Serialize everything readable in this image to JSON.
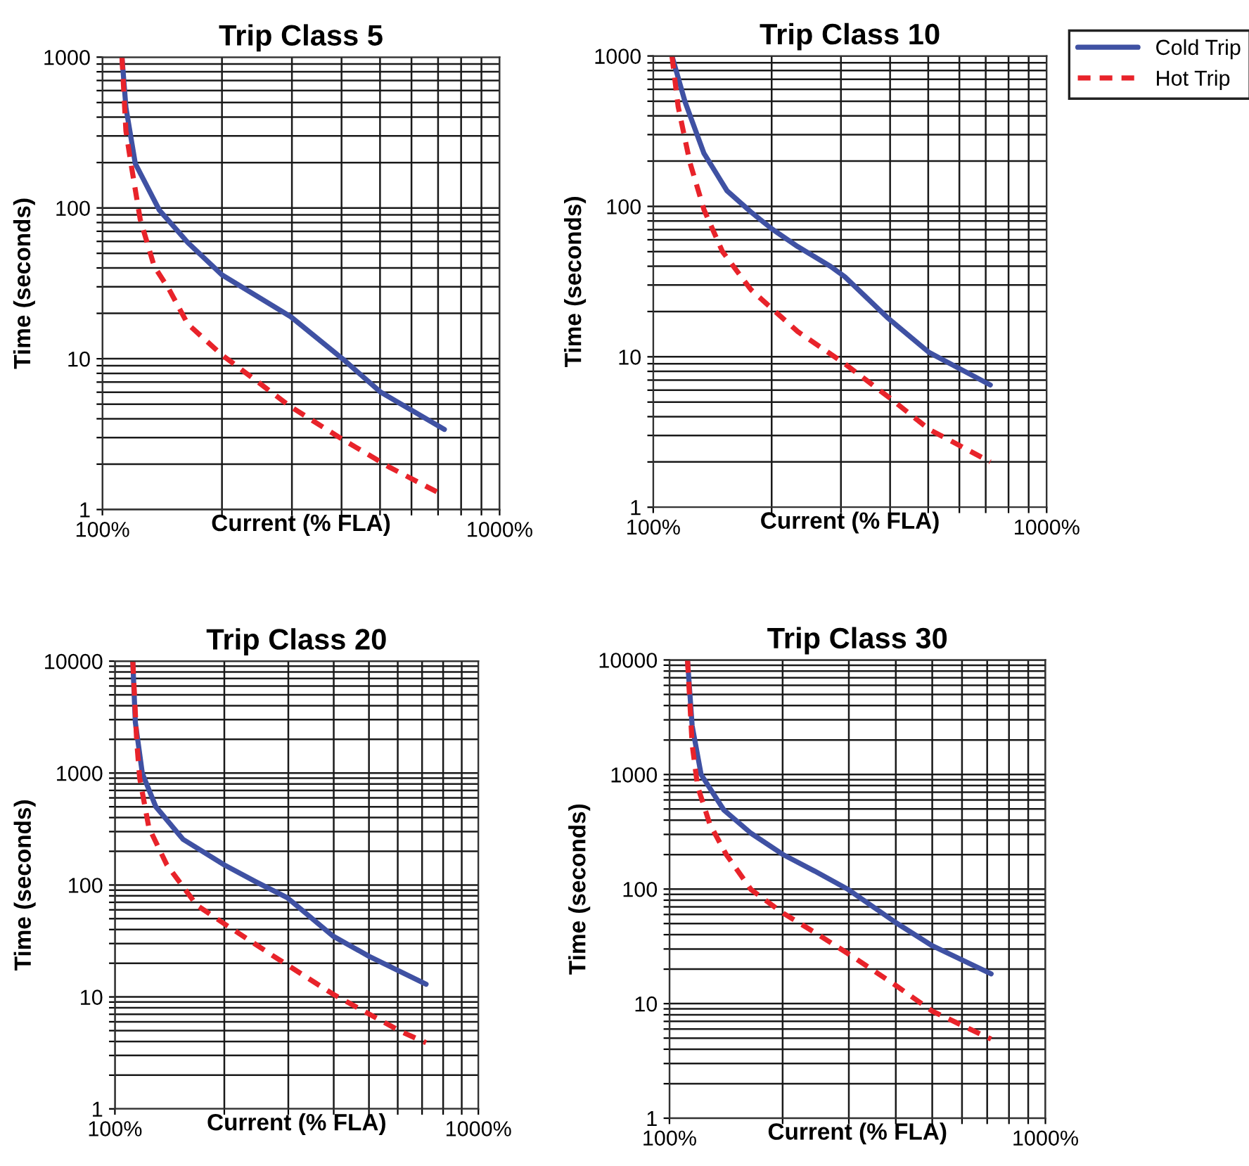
{
  "chart_data": [
    {
      "type": "line",
      "title": "Trip Class 5",
      "xlabel": "Current (% FLA)",
      "ylabel": "Time (seconds)",
      "log": "xy",
      "grid": true,
      "legend": false,
      "xlim": [
        100,
        1000
      ],
      "ylim": [
        1,
        1000
      ],
      "xticks": [
        {
          "value": 100,
          "label": "100%"
        },
        {
          "value": 200,
          "label": null
        },
        {
          "value": 300,
          "label": null
        },
        {
          "value": 400,
          "label": null
        },
        {
          "value": 500,
          "label": null
        },
        {
          "value": 600,
          "label": null
        },
        {
          "value": 700,
          "label": null
        },
        {
          "value": 800,
          "label": null
        },
        {
          "value": 900,
          "label": null
        },
        {
          "value": 1000,
          "label": "1000%"
        }
      ],
      "yticks": [
        1,
        {
          "value": 2,
          "label": null
        },
        {
          "value": 3,
          "label": null
        },
        {
          "value": 4,
          "label": null
        },
        {
          "value": 5,
          "label": null
        },
        {
          "value": 6,
          "label": null
        },
        {
          "value": 7,
          "label": null
        },
        {
          "value": 8,
          "label": null
        },
        {
          "value": 9,
          "label": null
        },
        10,
        {
          "value": 20,
          "label": null
        },
        {
          "value": 30,
          "label": null
        },
        {
          "value": 40,
          "label": null
        },
        {
          "value": 50,
          "label": null
        },
        {
          "value": 60,
          "label": null
        },
        {
          "value": 70,
          "label": null
        },
        {
          "value": 80,
          "label": null
        },
        {
          "value": 90,
          "label": null
        },
        100,
        {
          "value": 200,
          "label": null
        },
        {
          "value": 300,
          "label": null
        },
        {
          "value": 400,
          "label": null
        },
        {
          "value": 500,
          "label": null
        },
        {
          "value": 600,
          "label": null
        },
        {
          "value": 700,
          "label": null
        },
        {
          "value": 800,
          "label": null
        },
        {
          "value": 900,
          "label": null
        },
        1000
      ],
      "series": [
        {
          "color": "#3f51a3",
          "line_style": "solid",
          "x": [
            112,
            114.6,
            121,
            139,
            164,
            200,
            298,
            404,
            502,
            726
          ],
          "values": [
            1000,
            464,
            197,
            97,
            59,
            36,
            19,
            9.9,
            6,
            3.4
          ]
        },
        {
          "color": "#e8232a",
          "line_style": "dashed",
          "x": [
            112,
            114.6,
            118,
            124.5,
            135,
            147,
            164,
            200,
            298,
            404,
            530,
            707
          ],
          "values": [
            1000,
            324,
            197,
            84,
            41,
            29,
            17,
            10.6,
            4.8,
            2.9,
            1.9,
            1.28
          ]
        }
      ]
    },
    {
      "type": "line",
      "title": "Trip Class 10",
      "xlabel": "Current (% FLA)",
      "ylabel": "Time (seconds)",
      "log": "xy",
      "grid": true,
      "legend": "top right",
      "xlim": [
        100,
        1000
      ],
      "ylim": [
        1,
        1000
      ],
      "xticks": [
        {
          "value": 100,
          "label": "100%"
        },
        {
          "value": 200,
          "label": null
        },
        {
          "value": 300,
          "label": null
        },
        {
          "value": 400,
          "label": null
        },
        {
          "value": 500,
          "label": null
        },
        {
          "value": 600,
          "label": null
        },
        {
          "value": 700,
          "label": null
        },
        {
          "value": 800,
          "label": null
        },
        {
          "value": 900,
          "label": null
        },
        {
          "value": 1000,
          "label": "1000%"
        }
      ],
      "yticks": [
        1,
        {
          "value": 2,
          "label": null
        },
        {
          "value": 3,
          "label": null
        },
        {
          "value": 4,
          "label": null
        },
        {
          "value": 5,
          "label": null
        },
        {
          "value": 6,
          "label": null
        },
        {
          "value": 7,
          "label": null
        },
        {
          "value": 8,
          "label": null
        },
        {
          "value": 9,
          "label": null
        },
        10,
        {
          "value": 20,
          "label": null
        },
        {
          "value": 30,
          "label": null
        },
        {
          "value": 40,
          "label": null
        },
        {
          "value": 50,
          "label": null
        },
        {
          "value": 60,
          "label": null
        },
        {
          "value": 70,
          "label": null
        },
        {
          "value": 80,
          "label": null
        },
        {
          "value": 90,
          "label": null
        },
        100,
        {
          "value": 200,
          "label": null
        },
        {
          "value": 300,
          "label": null
        },
        {
          "value": 400,
          "label": null
        },
        {
          "value": 500,
          "label": null
        },
        {
          "value": 600,
          "label": null
        },
        {
          "value": 700,
          "label": null
        },
        {
          "value": 800,
          "label": null
        },
        {
          "value": 900,
          "label": null
        },
        1000
      ],
      "series": [
        {
          "name": "Cold Trip",
          "color": "#3f51a3",
          "line_style": "solid",
          "x": [
            111.6,
            120.5,
            134.6,
            154,
            177,
            200,
            233,
            282,
            307,
            393,
            502,
            719
          ],
          "values": [
            1000,
            495,
            225,
            127,
            92,
            71,
            54,
            40,
            34,
            18.3,
            10.7,
            6.5
          ]
        },
        {
          "name": "Hot Trip",
          "color": "#e8232a",
          "line_style": "dashed",
          "x": [
            111.6,
            115.7,
            124,
            134.6,
            150,
            177,
            200,
            233,
            303,
            404,
            502,
            719
          ],
          "values": [
            1000,
            461,
            195,
            95,
            50,
            28,
            21,
            14.7,
            9.2,
            5.2,
            3.3,
            2
          ]
        }
      ]
    },
    {
      "type": "line",
      "title": "Trip Class 20",
      "xlabel": "Current (% FLA)",
      "ylabel": "Time (seconds)",
      "log": "xy",
      "grid": true,
      "legend": false,
      "xlim": [
        100,
        1000
      ],
      "ylim": [
        1,
        10000
      ],
      "xticks": [
        {
          "value": 100,
          "label": "100%"
        },
        {
          "value": 200,
          "label": null
        },
        {
          "value": 300,
          "label": null
        },
        {
          "value": 400,
          "label": null
        },
        {
          "value": 500,
          "label": null
        },
        {
          "value": 600,
          "label": null
        },
        {
          "value": 700,
          "label": null
        },
        {
          "value": 800,
          "label": null
        },
        {
          "value": 900,
          "label": null
        },
        {
          "value": 1000,
          "label": "1000%"
        }
      ],
      "yticks": [
        1,
        {
          "value": 2,
          "label": null
        },
        {
          "value": 3,
          "label": null
        },
        {
          "value": 4,
          "label": null
        },
        {
          "value": 5,
          "label": null
        },
        {
          "value": 6,
          "label": null
        },
        {
          "value": 7,
          "label": null
        },
        {
          "value": 8,
          "label": null
        },
        {
          "value": 9,
          "label": null
        },
        10,
        {
          "value": 20,
          "label": null
        },
        {
          "value": 30,
          "label": null
        },
        {
          "value": 40,
          "label": null
        },
        {
          "value": 50,
          "label": null
        },
        {
          "value": 60,
          "label": null
        },
        {
          "value": 70,
          "label": null
        },
        {
          "value": 80,
          "label": null
        },
        {
          "value": 90,
          "label": null
        },
        100,
        {
          "value": 200,
          "label": null
        },
        {
          "value": 300,
          "label": null
        },
        {
          "value": 400,
          "label": null
        },
        {
          "value": 500,
          "label": null
        },
        {
          "value": 600,
          "label": null
        },
        {
          "value": 700,
          "label": null
        },
        {
          "value": 800,
          "label": null
        },
        {
          "value": 900,
          "label": null
        },
        1000,
        {
          "value": 2000,
          "label": null
        },
        {
          "value": 3000,
          "label": null
        },
        {
          "value": 4000,
          "label": null
        },
        {
          "value": 5000,
          "label": null
        },
        {
          "value": 6000,
          "label": null
        },
        {
          "value": 7000,
          "label": null
        },
        {
          "value": 8000,
          "label": null
        },
        {
          "value": 9000,
          "label": null
        },
        10000
      ],
      "series": [
        {
          "color": "#3f51a3",
          "line_style": "solid",
          "x": [
            112,
            113.8,
            119,
            129.6,
            154,
            200,
            244,
            298,
            398,
            501,
            718
          ],
          "values": [
            10000,
            2850,
            990,
            500,
            256,
            151,
            107,
            77,
            35,
            23,
            13
          ]
        },
        {
          "color": "#e8232a",
          "line_style": "dashed",
          "x": [
            112,
            114.8,
            117,
            124,
            139,
            168,
            200,
            274,
            398,
            613,
            718
          ],
          "values": [
            10000,
            1940,
            900,
            326,
            151,
            66,
            45,
            23,
            10.6,
            4.9,
            3.9
          ]
        }
      ]
    },
    {
      "type": "line",
      "title": "Trip Class 30",
      "xlabel": "Current (% FLA)",
      "ylabel": "Time (seconds)",
      "log": "xy",
      "grid": true,
      "legend": false,
      "xlim": [
        100,
        1000
      ],
      "ylim": [
        1,
        10000
      ],
      "xticks": [
        {
          "value": 100,
          "label": "100%"
        },
        {
          "value": 200,
          "label": null
        },
        {
          "value": 300,
          "label": null
        },
        {
          "value": 400,
          "label": null
        },
        {
          "value": 500,
          "label": null
        },
        {
          "value": 600,
          "label": null
        },
        {
          "value": 700,
          "label": null
        },
        {
          "value": 800,
          "label": null
        },
        {
          "value": 900,
          "label": null
        },
        {
          "value": 1000,
          "label": "1000%"
        }
      ],
      "yticks": [
        1,
        {
          "value": 2,
          "label": null
        },
        {
          "value": 3,
          "label": null
        },
        {
          "value": 4,
          "label": null
        },
        {
          "value": 5,
          "label": null
        },
        {
          "value": 6,
          "label": null
        },
        {
          "value": 7,
          "label": null
        },
        {
          "value": 8,
          "label": null
        },
        {
          "value": 9,
          "label": null
        },
        10,
        {
          "value": 20,
          "label": null
        },
        {
          "value": 30,
          "label": null
        },
        {
          "value": 40,
          "label": null
        },
        {
          "value": 50,
          "label": null
        },
        {
          "value": 60,
          "label": null
        },
        {
          "value": 70,
          "label": null
        },
        {
          "value": 80,
          "label": null
        },
        {
          "value": 90,
          "label": null
        },
        100,
        {
          "value": 200,
          "label": null
        },
        {
          "value": 300,
          "label": null
        },
        {
          "value": 400,
          "label": null
        },
        {
          "value": 500,
          "label": null
        },
        {
          "value": 600,
          "label": null
        },
        {
          "value": 700,
          "label": null
        },
        {
          "value": 800,
          "label": null
        },
        {
          "value": 900,
          "label": null
        },
        1000,
        {
          "value": 2000,
          "label": null
        },
        {
          "value": 3000,
          "label": null
        },
        {
          "value": 4000,
          "label": null
        },
        {
          "value": 5000,
          "label": null
        },
        {
          "value": 6000,
          "label": null
        },
        {
          "value": 7000,
          "label": null
        },
        {
          "value": 8000,
          "label": null
        },
        {
          "value": 9000,
          "label": null
        },
        10000
      ],
      "series": [
        {
          "color": "#3f51a3",
          "line_style": "solid",
          "x": [
            111.7,
            114.9,
            121.4,
            139.5,
            164.8,
            200,
            243,
            299,
            400,
            500,
            717
          ],
          "values": [
            10000,
            2670,
            1000,
            490,
            307,
            201,
            144,
            99,
            51,
            32,
            18.2
          ]
        },
        {
          "color": "#e8232a",
          "line_style": "dashed",
          "x": [
            111.7,
            114.9,
            118.8,
            128,
            141.5,
            164.8,
            200,
            243,
            303,
            400,
            500,
            717
          ],
          "values": [
            10000,
            1840,
            790,
            370,
            201,
            99,
            62,
            42,
            26.5,
            14.4,
            8.6,
            4.9
          ]
        }
      ]
    }
  ]
}
